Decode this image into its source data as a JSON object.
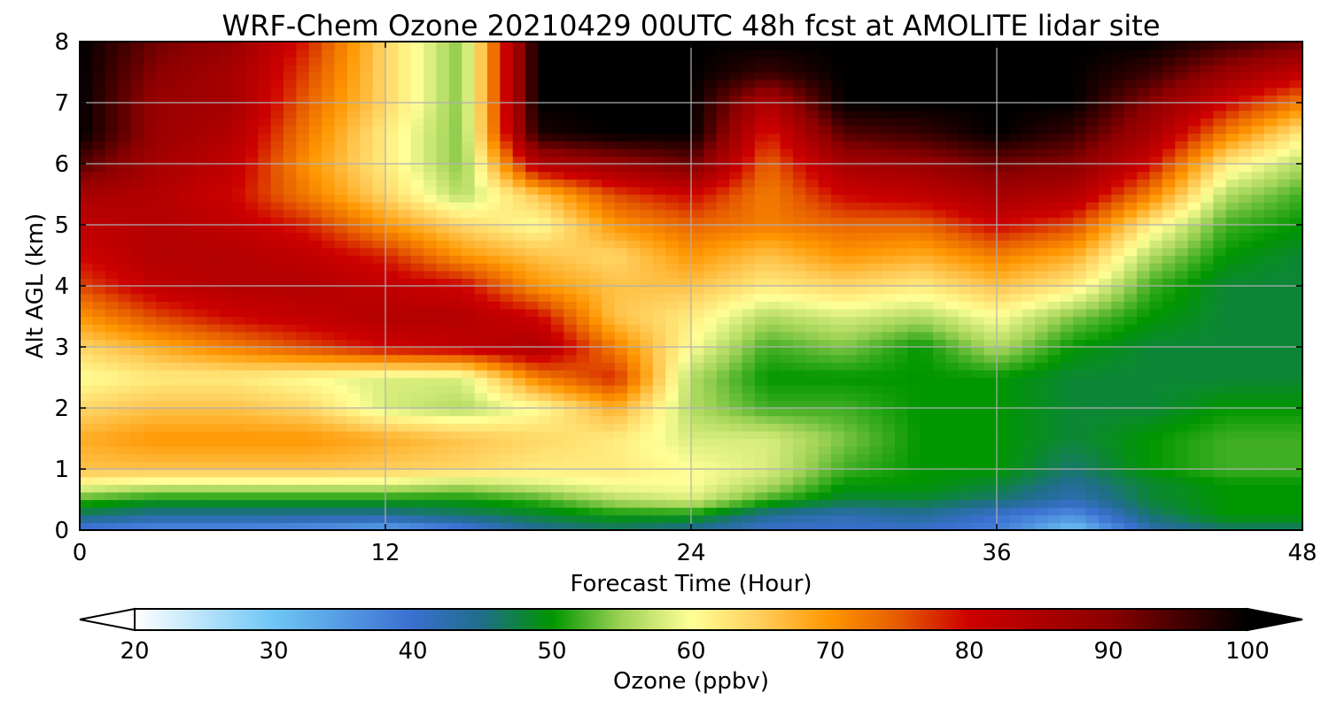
{
  "chart_data": {
    "type": "heatmap",
    "title": "WRF-Chem Ozone  20210429 00UTC 48h fcst at AMOLITE lidar site",
    "xlabel": "Forecast Time (Hour)",
    "ylabel": "Alt AGL (km)",
    "xlim": [
      0,
      48
    ],
    "ylim": [
      0,
      8
    ],
    "x_ticks": [
      "0",
      "12",
      "24",
      "36",
      "48"
    ],
    "y_ticks": [
      "0",
      "1",
      "2",
      "3",
      "4",
      "5",
      "6",
      "7",
      "8"
    ],
    "grid": true,
    "x_hours": [
      0,
      3,
      6,
      9,
      12,
      15,
      18,
      21,
      24,
      27,
      30,
      33,
      36,
      39,
      42,
      45,
      48
    ],
    "y_km": [
      0,
      0.25,
      0.5,
      0.75,
      1,
      1.5,
      2,
      2.5,
      3,
      3.5,
      4,
      4.5,
      5,
      5.5,
      6,
      6.5,
      7,
      7.5,
      8
    ],
    "ozone_ppbv": [
      [
        38,
        36,
        36,
        35,
        33,
        38,
        44,
        46,
        44,
        40,
        40,
        40,
        38,
        30,
        42,
        46,
        46
      ],
      [
        46,
        44,
        44,
        44,
        44,
        46,
        48,
        50,
        50,
        44,
        42,
        44,
        40,
        36,
        46,
        50,
        50
      ],
      [
        52,
        50,
        50,
        50,
        50,
        50,
        52,
        56,
        58,
        52,
        48,
        48,
        46,
        42,
        48,
        50,
        50
      ],
      [
        60,
        58,
        58,
        58,
        58,
        56,
        58,
        60,
        60,
        56,
        50,
        50,
        48,
        44,
        48,
        50,
        50
      ],
      [
        66,
        66,
        66,
        66,
        65,
        64,
        62,
        62,
        60,
        58,
        52,
        50,
        50,
        46,
        50,
        52,
        52
      ],
      [
        68,
        70,
        70,
        70,
        68,
        66,
        64,
        62,
        58,
        58,
        54,
        50,
        50,
        48,
        50,
        52,
        52
      ],
      [
        64,
        66,
        66,
        64,
        58,
        56,
        60,
        68,
        56,
        52,
        52,
        50,
        50,
        48,
        48,
        50,
        50
      ],
      [
        60,
        62,
        62,
        60,
        58,
        58,
        72,
        78,
        56,
        50,
        50,
        50,
        50,
        48,
        48,
        48,
        48
      ],
      [
        64,
        68,
        72,
        76,
        80,
        82,
        85,
        72,
        60,
        52,
        54,
        50,
        56,
        50,
        48,
        48,
        48
      ],
      [
        70,
        76,
        80,
        82,
        84,
        84,
        80,
        66,
        62,
        56,
        58,
        56,
        60,
        54,
        50,
        48,
        48
      ],
      [
        76,
        82,
        84,
        84,
        82,
        80,
        70,
        66,
        66,
        62,
        64,
        62,
        66,
        62,
        52,
        48,
        48
      ],
      [
        80,
        84,
        84,
        82,
        78,
        70,
        66,
        64,
        70,
        66,
        70,
        68,
        72,
        68,
        56,
        50,
        48
      ],
      [
        82,
        84,
        82,
        78,
        70,
        64,
        60,
        70,
        74,
        72,
        74,
        74,
        80,
        76,
        62,
        52,
        50
      ],
      [
        86,
        84,
        80,
        72,
        64,
        56,
        66,
        76,
        80,
        72,
        80,
        82,
        86,
        84,
        72,
        56,
        52
      ],
      [
        94,
        86,
        82,
        70,
        62,
        54,
        84,
        88,
        92,
        74,
        86,
        88,
        92,
        90,
        80,
        62,
        56
      ],
      [
        100,
        88,
        84,
        72,
        62,
        54,
        98,
        100,
        100,
        78,
        94,
        96,
        100,
        96,
        86,
        72,
        62
      ],
      [
        100,
        88,
        86,
        74,
        64,
        54,
        100,
        100,
        100,
        84,
        100,
        100,
        100,
        100,
        90,
        80,
        72
      ],
      [
        100,
        90,
        86,
        76,
        64,
        54,
        100,
        100,
        100,
        96,
        100,
        100,
        100,
        100,
        96,
        88,
        82
      ],
      [
        100,
        92,
        88,
        78,
        64,
        54,
        100,
        100,
        100,
        100,
        100,
        100,
        100,
        100,
        100,
        96,
        92
      ]
    ],
    "colorbar": {
      "label": "Ozone  (ppbv)",
      "min": 20,
      "max": 100,
      "tick_labels": [
        "20",
        "30",
        "40",
        "50",
        "60",
        "70",
        "80",
        "90",
        "100"
      ],
      "extend": "both",
      "stops": [
        {
          "v": 20,
          "c": "#ffffff"
        },
        {
          "v": 30,
          "c": "#6ec6f5"
        },
        {
          "v": 40,
          "c": "#3a6fd0"
        },
        {
          "v": 45,
          "c": "#1e6e88"
        },
        {
          "v": 50,
          "c": "#009600"
        },
        {
          "v": 55,
          "c": "#9ed255"
        },
        {
          "v": 60,
          "c": "#ffff96"
        },
        {
          "v": 65,
          "c": "#ffcd5a"
        },
        {
          "v": 70,
          "c": "#ff9600"
        },
        {
          "v": 75,
          "c": "#e55a00"
        },
        {
          "v": 80,
          "c": "#cd0000"
        },
        {
          "v": 90,
          "c": "#8c0000"
        },
        {
          "v": 100,
          "c": "#000000"
        }
      ]
    }
  }
}
